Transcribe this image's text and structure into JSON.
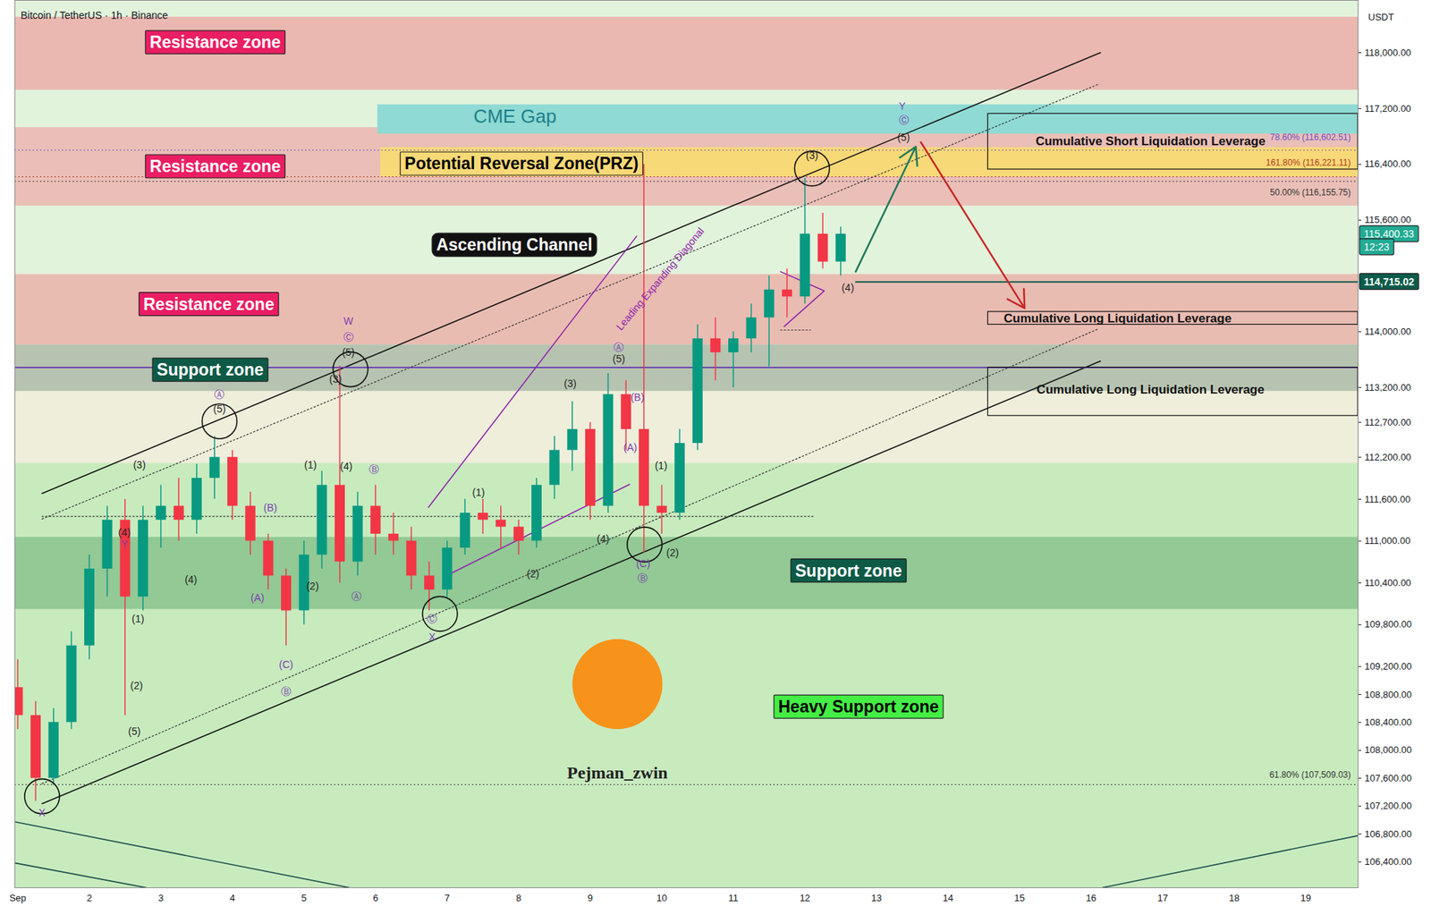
{
  "chart_data": {
    "type": "candlestick",
    "title": "Bitcoin / TetherUS · 1h · Binance",
    "y_unit": "USDT",
    "xlim": [
      0.96,
      19.73
    ],
    "ylim": [
      106030,
      118750
    ],
    "xticks": [
      {
        "value": 1,
        "label": "Sep"
      },
      2,
      3,
      4,
      5,
      6,
      7,
      8,
      9,
      10,
      11,
      12,
      13,
      14,
      15,
      16,
      17,
      18,
      19
    ],
    "yticks": [
      {
        "value": 118000,
        "label": "118,000.00"
      },
      {
        "value": 117200,
        "label": "117,200.00"
      },
      {
        "value": 116400,
        "label": "116,400.00"
      },
      {
        "value": 115600,
        "label": "115,600.00"
      },
      {
        "value": 114000,
        "label": "114,000.00"
      },
      {
        "value": 113200,
        "label": "113,200.00"
      },
      {
        "value": 112700,
        "label": "112,700.00"
      },
      {
        "value": 112200,
        "label": "112,200.00"
      },
      {
        "value": 111600,
        "label": "111,600.00"
      },
      {
        "value": 111000,
        "label": "111,000.00"
      },
      {
        "value": 110400,
        "label": "110,400.00"
      },
      {
        "value": 109800,
        "label": "109,800.00"
      },
      {
        "value": 109200,
        "label": "109,200.00"
      },
      {
        "value": 108800,
        "label": "108,800.00"
      },
      {
        "value": 108400,
        "label": "108,400.00"
      },
      {
        "value": 108000,
        "label": "108,000.00"
      },
      {
        "value": 107600,
        "label": "107,600.00"
      },
      {
        "value": 107200,
        "label": "107,200.00"
      },
      {
        "value": 106800,
        "label": "106,800.00"
      },
      {
        "value": 106400,
        "label": "106,400.00"
      }
    ],
    "x": [
      1,
      1.25,
      1.5,
      1.75,
      2,
      2.25,
      2.5,
      2.75,
      3,
      3.25,
      3.5,
      3.75,
      4,
      4.25,
      4.5,
      4.75,
      5,
      5.25,
      5.5,
      5.75,
      6,
      6.25,
      6.5,
      6.75,
      7,
      7.25,
      7.5,
      7.75,
      8,
      8.25,
      8.5,
      8.75,
      9,
      9.25,
      9.5,
      9.75,
      10,
      10.25,
      10.5,
      10.75,
      11,
      11.25,
      11.5,
      11.75,
      12,
      12.25,
      12.5
    ],
    "open": [
      108900,
      108500,
      107600,
      108400,
      109500,
      110600,
      111300,
      110200,
      111300,
      111500,
      111300,
      111900,
      112200,
      111500,
      111000,
      110500,
      110000,
      110800,
      111800,
      110700,
      111500,
      111100,
      111000,
      110500,
      110300,
      110900,
      111400,
      111300,
      111200,
      111000,
      111800,
      112300,
      112600,
      111500,
      113100,
      112600,
      111500,
      111400,
      112400,
      113900,
      113700,
      113900,
      114200,
      114600,
      114500,
      115400,
      115000
    ],
    "high": [
      109300,
      108700,
      108600,
      109700,
      110800,
      111500,
      111600,
      111500,
      111800,
      111900,
      112100,
      112500,
      112300,
      111700,
      111100,
      110600,
      111000,
      112000,
      113510,
      111700,
      111800,
      111400,
      111200,
      110700,
      111000,
      111600,
      111600,
      111500,
      111300,
      111900,
      112500,
      113000,
      112700,
      113400,
      113300,
      116400,
      111800,
      112600,
      114100,
      114200,
      114000,
      114400,
      114800,
      114900,
      116200,
      115700,
      115500
    ],
    "low": [
      108300,
      107270,
      107500,
      108300,
      109300,
      110200,
      108500,
      110000,
      110900,
      111000,
      111100,
      111600,
      111300,
      110800,
      110300,
      109500,
      109800,
      110600,
      110400,
      110500,
      110800,
      110800,
      110300,
      110000,
      110200,
      110800,
      111100,
      110900,
      110800,
      110900,
      111600,
      112000,
      111300,
      111400,
      112300,
      110830,
      111100,
      111300,
      112300,
      113300,
      113200,
      113700,
      113500,
      114200,
      114400,
      114900,
      114800
    ],
    "close": [
      108500,
      107600,
      108400,
      109500,
      110600,
      111300,
      110200,
      111300,
      111500,
      111300,
      111900,
      112200,
      111500,
      111000,
      110500,
      110000,
      110800,
      111800,
      110700,
      111500,
      111100,
      111000,
      110500,
      110300,
      110900,
      111400,
      111300,
      111200,
      111000,
      111800,
      112300,
      112600,
      111500,
      113100,
      112600,
      111500,
      111400,
      112400,
      113900,
      113700,
      113900,
      114200,
      114600,
      114500,
      115400,
      115000,
      115400.33
    ],
    "zones": [
      {
        "y": [
          112114,
          113147
        ],
        "color": "#efeedb"
      },
      {
        "y": [
          106030,
          112114
        ],
        "color": "#c8ebbe"
      },
      {
        "y": [
          110021,
          111054
        ],
        "color": "#92c995"
      },
      {
        "y": [
          113147,
          113814
        ],
        "color": "#b7c3b1"
      },
      {
        "y": [
          113814,
          114822
        ],
        "color": "#e9bcb2"
      },
      {
        "y": [
          115803,
          116927
        ],
        "color": "#eabfb7"
      },
      {
        "y": [
          117464,
          118510
        ],
        "color": "#eab8b1"
      },
      {
        "y": [
          116836,
          117254
        ],
        "x": [
          6.03,
          19.73
        ],
        "color": "#8fdad4"
      },
      {
        "y": [
          116221,
          116640
        ],
        "x": [
          6.07,
          19.73
        ],
        "color": "#f8d977"
      }
    ],
    "fib": [
      {
        "value": 116602.51,
        "label": "78.60% (116,602.51)",
        "label_y": 116784,
        "color": "#6a4fc9"
      },
      {
        "value": 116221.11,
        "label": "161.80% (116,221.11)",
        "label_y": 116420,
        "color": "#b23a1e"
      },
      {
        "value": 116155.75,
        "label": "50.00% (116,155.75)",
        "label_y": 116000,
        "color": "#333333"
      },
      {
        "value": 107509.03,
        "label": "61.80% (107,509.03)",
        "label_y": 107650,
        "color": "#333333"
      }
    ],
    "lines": [
      {
        "x": [
          1.34,
          16.13
        ],
        "y": [
          111683,
          118000
        ],
        "color": "#111111",
        "line_style": "solid"
      },
      {
        "x": [
          1.34,
          16.13
        ],
        "y": [
          107235,
          113579
        ],
        "color": "#111111",
        "line_style": "solid"
      },
      {
        "x": [
          1.34,
          16.09
        ],
        "y": [
          111316,
          117542
        ],
        "color": "#333333",
        "line_style": "dotted"
      },
      {
        "x": [
          1.34,
          16.09
        ],
        "y": [
          107522,
          114036
        ],
        "color": "#333333",
        "line_style": "dotted"
      },
      {
        "x": [
          0.96,
          19.73
        ],
        "y": [
          113487,
          113487
        ],
        "color": "#5e35b1",
        "line_style": "solid"
      },
      {
        "x": [
          1.34,
          12.12
        ],
        "y": [
          111354,
          111354
        ],
        "color": "#333333",
        "line_style": "dotted"
      },
      {
        "x": [
          11.66,
          12.08
        ],
        "y": [
          114024,
          114024
        ],
        "color": "#333333",
        "line_style": "dotted"
      },
      {
        "x": [
          6.74,
          9.65
        ],
        "y": [
          111485,
          115371
        ],
        "color": "#8e24aa",
        "line_style": "solid"
      },
      {
        "x": [
          6.99,
          9.55
        ],
        "y": [
          110504,
          111812
        ],
        "color": "#8e24aa",
        "line_style": "solid"
      },
      {
        "x": [
          11.66,
          12.27,
          11.71
        ],
        "y": [
          114861,
          114586,
          114076
        ],
        "color": "#8e24aa",
        "line_style": "solid"
      },
      {
        "x": [
          16.16,
          19.73
        ],
        "y": [
          106032,
          106777
        ],
        "color": "#1b4d4a",
        "line_style": "solid"
      },
      {
        "x": [
          0.96,
          5.63
        ],
        "y": [
          106974,
          106032
        ],
        "color": "#1b4d4a",
        "line_style": "solid"
      },
      {
        "x": [
          0.96,
          2.79
        ],
        "y": [
          106385,
          106032
        ],
        "color": "#1b4d4a",
        "line_style": "solid"
      }
    ],
    "level": {
      "value": 114715.02,
      "label": "114,715.02",
      "x": 12.71,
      "color": "#0d5c4b"
    },
    "last_price": {
      "value": 115400.33,
      "label": "115,400.33",
      "time": "12:23",
      "color": "#22ab94"
    },
    "arrows": [
      {
        "x": [
          12.71,
          13.55
        ],
        "y": [
          114861,
          116653
        ],
        "color": "#1f7a5c"
      },
      {
        "x": [
          13.62,
          15.07
        ],
        "y": [
          116718,
          114338
        ],
        "color": "#c62828"
      }
    ],
    "boxes": [
      {
        "x": [
          14.56,
          19.73
        ],
        "y": [
          116326,
          117124
        ],
        "color": "#111111"
      },
      {
        "x": [
          14.56,
          19.73
        ],
        "y": [
          114102,
          114285
        ],
        "color": "#111111"
      },
      {
        "x": [
          14.56,
          19.73
        ],
        "y": [
          112794,
          113487
        ],
        "color": "#111111"
      }
    ],
    "boxed_labels": [
      {
        "text": "Resistance zone",
        "x": 3.76,
        "y": 118144,
        "color": "#e91e63"
      },
      {
        "text": "Resistance zone",
        "x": 3.76,
        "y": 116365,
        "color": "#e91e63"
      },
      {
        "text": "Resistance zone",
        "x": 3.67,
        "y": 114390,
        "color": "#e91e63"
      },
      {
        "text": "Support zone",
        "x": 3.69,
        "y": 113450,
        "color": "#0e5a46"
      },
      {
        "text": "Support zone",
        "x": 12.61,
        "y": 110570,
        "color": "#0e5a46"
      },
      {
        "text": "Heavy Support zone",
        "x": 12.75,
        "y": 108620,
        "color": "#44ee44"
      },
      {
        "text": "Ascending Channel",
        "x": 7.94,
        "y": 115240,
        "color": "#111111"
      },
      {
        "text": "Potential Reversal Zone(PRZ)",
        "x": 8.04,
        "y": 116404,
        "color": "#f8d977"
      }
    ],
    "labels": [
      {
        "text": "CME Gap",
        "x": 7.95,
        "y": 117084,
        "color": "#1d7f8a"
      },
      {
        "text": "Cumulative Short Liquidation Leverage",
        "x": 16.83,
        "y": 116731,
        "color": "#111111"
      },
      {
        "text": "Cumulative Long Liquidation Leverage",
        "x": 16.37,
        "y": 114194,
        "color": "#111111"
      },
      {
        "text": "Cumulative Long Liquidation Leverage",
        "x": 16.83,
        "y": 113173,
        "color": "#111111"
      }
    ],
    "diagonal_label": {
      "text": "Leading Expanding Diagonal",
      "x": 9.98,
      "y": 114756,
      "color": "#8e24aa"
    },
    "circles": [
      {
        "x": 1.34,
        "y": 107340
      },
      {
        "x": 3.82,
        "y": 112716
      },
      {
        "x": 5.65,
        "y": 113461
      },
      {
        "x": 6.9,
        "y": 109956
      },
      {
        "x": 9.76,
        "y": 110950
      },
      {
        "x": 12.1,
        "y": 116339
      }
    ],
    "waves": [
      {
        "text": "(3)",
        "x": 12.1,
        "y": 116522,
        "color": "#222222"
      },
      {
        "text": "(5)",
        "x": 13.38,
        "y": 116784,
        "color": "#222222"
      },
      {
        "text": "Ⓒ",
        "x": 13.38,
        "y": 117032,
        "color": "#7b3fb0"
      },
      {
        "text": "Y",
        "x": 13.36,
        "y": 117228,
        "color": "#7b3fb0"
      },
      {
        "text": "(4)",
        "x": 12.6,
        "y": 114625,
        "color": "#222222"
      },
      {
        "text": "(3)",
        "x": 8.72,
        "y": 113252,
        "color": "#222222"
      },
      {
        "text": "(5)",
        "x": 9.4,
        "y": 113605,
        "color": "#222222"
      },
      {
        "text": "Ⓐ",
        "x": 9.4,
        "y": 113775,
        "color": "#7b3fb0"
      },
      {
        "text": "(1)",
        "x": 7.44,
        "y": 111695,
        "color": "#222222"
      },
      {
        "text": "(2)",
        "x": 8.2,
        "y": 110531,
        "color": "#222222"
      },
      {
        "text": "(4)",
        "x": 9.18,
        "y": 111028,
        "color": "#222222"
      },
      {
        "text": "(B)",
        "x": 9.66,
        "y": 113056,
        "color": "#7b3fb0"
      },
      {
        "text": "(A)",
        "x": 9.56,
        "y": 112336,
        "color": "#7b3fb0"
      },
      {
        "text": "(1)",
        "x": 9.99,
        "y": 112075,
        "color": "#222222"
      },
      {
        "text": "(2)",
        "x": 10.15,
        "y": 110832,
        "color": "#222222"
      },
      {
        "text": "(C)",
        "x": 9.74,
        "y": 110675,
        "color": "#7b3fb0"
      },
      {
        "text": "Ⓑ",
        "x": 9.73,
        "y": 110466,
        "color": "#7b3fb0"
      },
      {
        "text": "(5)",
        "x": 5.62,
        "y": 113697,
        "color": "#222222"
      },
      {
        "text": "Ⓒ",
        "x": 5.62,
        "y": 113919,
        "color": "#7b3fb0"
      },
      {
        "text": "W",
        "x": 5.62,
        "y": 114154,
        "color": "#7b3fb0"
      },
      {
        "text": "(3)",
        "x": 5.44,
        "y": 113317,
        "color": "#222222"
      },
      {
        "text": "(4)",
        "x": 5.59,
        "y": 112062,
        "color": "#222222"
      },
      {
        "text": "(1)",
        "x": 5.09,
        "y": 112088,
        "color": "#222222"
      },
      {
        "text": "Ⓑ",
        "x": 5.98,
        "y": 112022,
        "color": "#7b3fb0"
      },
      {
        "text": "(2)",
        "x": 5.12,
        "y": 110348,
        "color": "#222222"
      },
      {
        "text": "Ⓐ",
        "x": 5.73,
        "y": 110204,
        "color": "#7b3fb0"
      },
      {
        "text": "Ⓒ",
        "x": 6.79,
        "y": 109877,
        "color": "#7b3fb0"
      },
      {
        "text": "X",
        "x": 6.79,
        "y": 109616,
        "color": "#7b3fb0"
      },
      {
        "text": "(5)",
        "x": 3.82,
        "y": 112886,
        "color": "#222222"
      },
      {
        "text": "Ⓐ",
        "x": 3.82,
        "y": 113095,
        "color": "#7b3fb0"
      },
      {
        "text": "(3)",
        "x": 2.7,
        "y": 112088,
        "color": "#222222"
      },
      {
        "text": "(4)",
        "x": 2.49,
        "y": 111120,
        "color": "#222222"
      },
      {
        "text": "Y",
        "x": 2.49,
        "y": 110950,
        "color": "#7b3fb0"
      },
      {
        "text": "(4)",
        "x": 3.42,
        "y": 110440,
        "color": "#222222"
      },
      {
        "text": "(B)",
        "x": 4.53,
        "y": 111473,
        "color": "#7b3fb0"
      },
      {
        "text": "(A)",
        "x": 4.35,
        "y": 110178,
        "color": "#7b3fb0"
      },
      {
        "text": "(C)",
        "x": 4.75,
        "y": 109223,
        "color": "#7b3fb0"
      },
      {
        "text": "Ⓑ",
        "x": 4.75,
        "y": 108844,
        "color": "#7b3fb0"
      },
      {
        "text": "(1)",
        "x": 2.68,
        "y": 109877,
        "color": "#222222"
      },
      {
        "text": "(2)",
        "x": 2.66,
        "y": 108922,
        "color": "#222222"
      },
      {
        "text": "(5)",
        "x": 2.63,
        "y": 108268,
        "color": "#222222"
      },
      {
        "text": "X",
        "x": 1.34,
        "y": 107104,
        "color": "#7b3fb0"
      }
    ],
    "watermark": {
      "text": "Pejman_zwin",
      "x": 9.38,
      "y": 107680,
      "color": "#f7931a"
    }
  }
}
